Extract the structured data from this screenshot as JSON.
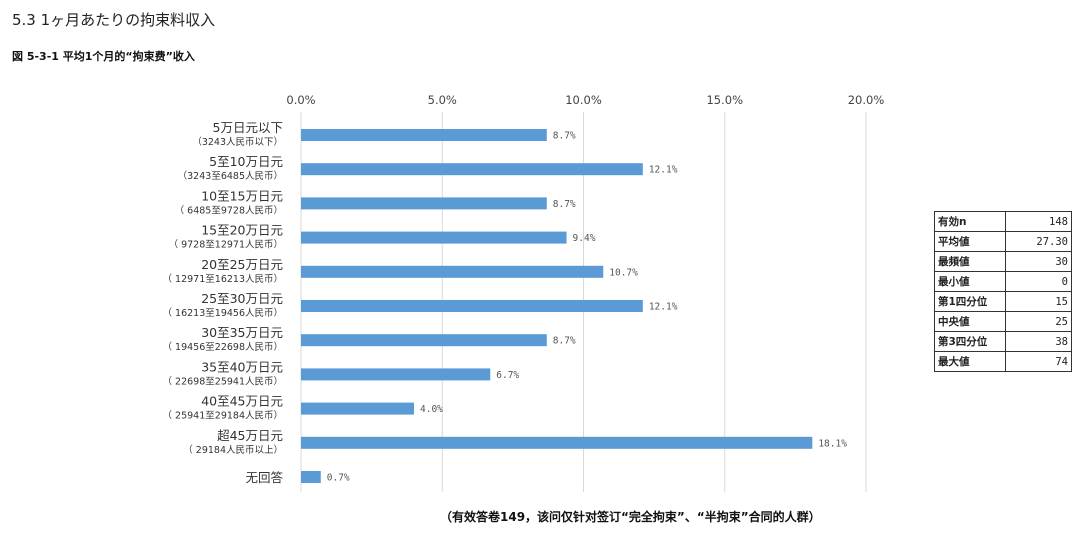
{
  "header": {
    "section_title": "5.3  1ヶ月あたりの拘束料収入",
    "figure_caption": "図 5-3-1  平均1个月的“拘束费”收入"
  },
  "chart_data": {
    "type": "bar",
    "orientation": "horizontal",
    "categories": [
      {
        "main": "5万日元以下",
        "sub": "（3243人民币以下）"
      },
      {
        "main": "5至10万日元",
        "sub": "（3243至6485人民币）"
      },
      {
        "main": "10至15万日元",
        "sub": "（ 6485至9728人民币）"
      },
      {
        "main": "15至20万日元",
        "sub": "（ 9728至12971人民币）"
      },
      {
        "main": "20至25万日元",
        "sub": "（ 12971至16213人民币）"
      },
      {
        "main": "25至30万日元",
        "sub": "（ 16213至19456人民币）"
      },
      {
        "main": "30至35万日元",
        "sub": "（ 19456至22698人民币）"
      },
      {
        "main": "35至40万日元",
        "sub": "（ 22698至25941人民币）"
      },
      {
        "main": "40至45万日元",
        "sub": "（ 25941至29184人民币）"
      },
      {
        "main": "超45万日元",
        "sub": "（ 29184人民币以上）"
      },
      {
        "main": "无回答",
        "sub": ""
      }
    ],
    "values": [
      8.7,
      12.1,
      8.7,
      9.4,
      10.7,
      12.1,
      8.7,
      6.7,
      4.0,
      18.1,
      0.7
    ],
    "value_labels": [
      "8.7%",
      "12.1%",
      "8.7%",
      "9.4%",
      "10.7%",
      "12.1%",
      "8.7%",
      "6.7%",
      "4.0%",
      "18.1%",
      "0.7%"
    ],
    "x_ticks": [
      "0.0%",
      "5.0%",
      "10.0%",
      "15.0%",
      "20.0%"
    ],
    "xlim": [
      0,
      20
    ],
    "bar_color": "#5b9bd5",
    "grid": true,
    "axis_position": "top"
  },
  "stats_table": [
    {
      "label": "有効n",
      "value": "148"
    },
    {
      "label": "平均値",
      "value": "27.30"
    },
    {
      "label": "最頻値",
      "value": "30"
    },
    {
      "label": "最小値",
      "value": "0"
    },
    {
      "label": "第1四分位",
      "value": "15"
    },
    {
      "label": "中央値",
      "value": "25"
    },
    {
      "label": "第3四分位",
      "value": "38"
    },
    {
      "label": "最大値",
      "value": "74"
    }
  ],
  "footnote": "（有效答卷149，该问仅针对签订“完全拘束”、“半拘束”合同的人群）"
}
